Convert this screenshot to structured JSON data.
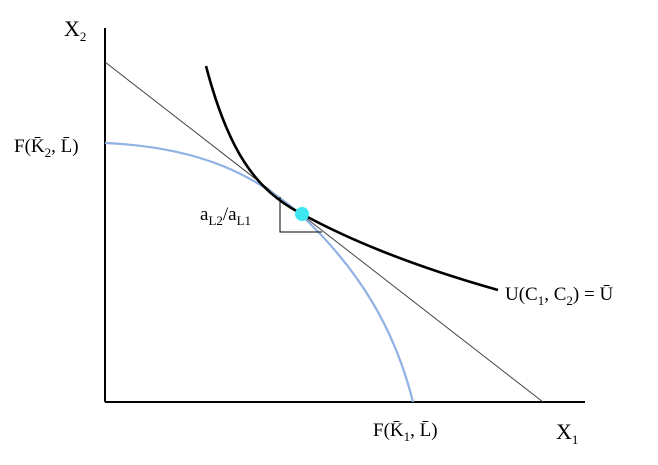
{
  "figure": {
    "axis_x_label": {
      "main": "X",
      "sub": "1"
    },
    "axis_y_label": {
      "main": "X",
      "sub": "2"
    },
    "y_intercept_label": {
      "pre": "F(K̄",
      "sub": "2",
      "post": ", L̄)"
    },
    "x_intercept_label": {
      "pre": "F(K̄",
      "sub": "1",
      "post": ", L̄)"
    },
    "slope_label": {
      "a1": "a",
      "s1": "L2",
      "mid": "/a",
      "s2": "L1"
    },
    "utility_label": {
      "pre": "U(C",
      "s1": "1",
      "mid": ", C",
      "s2": "2",
      "post": ") = Ū"
    },
    "colors": {
      "ppf_curve": "#8fb1e3",
      "indifference_curve": "#000000",
      "budget_line": "#444444",
      "tangency_point": "#3ee7f0",
      "axes": "#000000"
    }
  }
}
